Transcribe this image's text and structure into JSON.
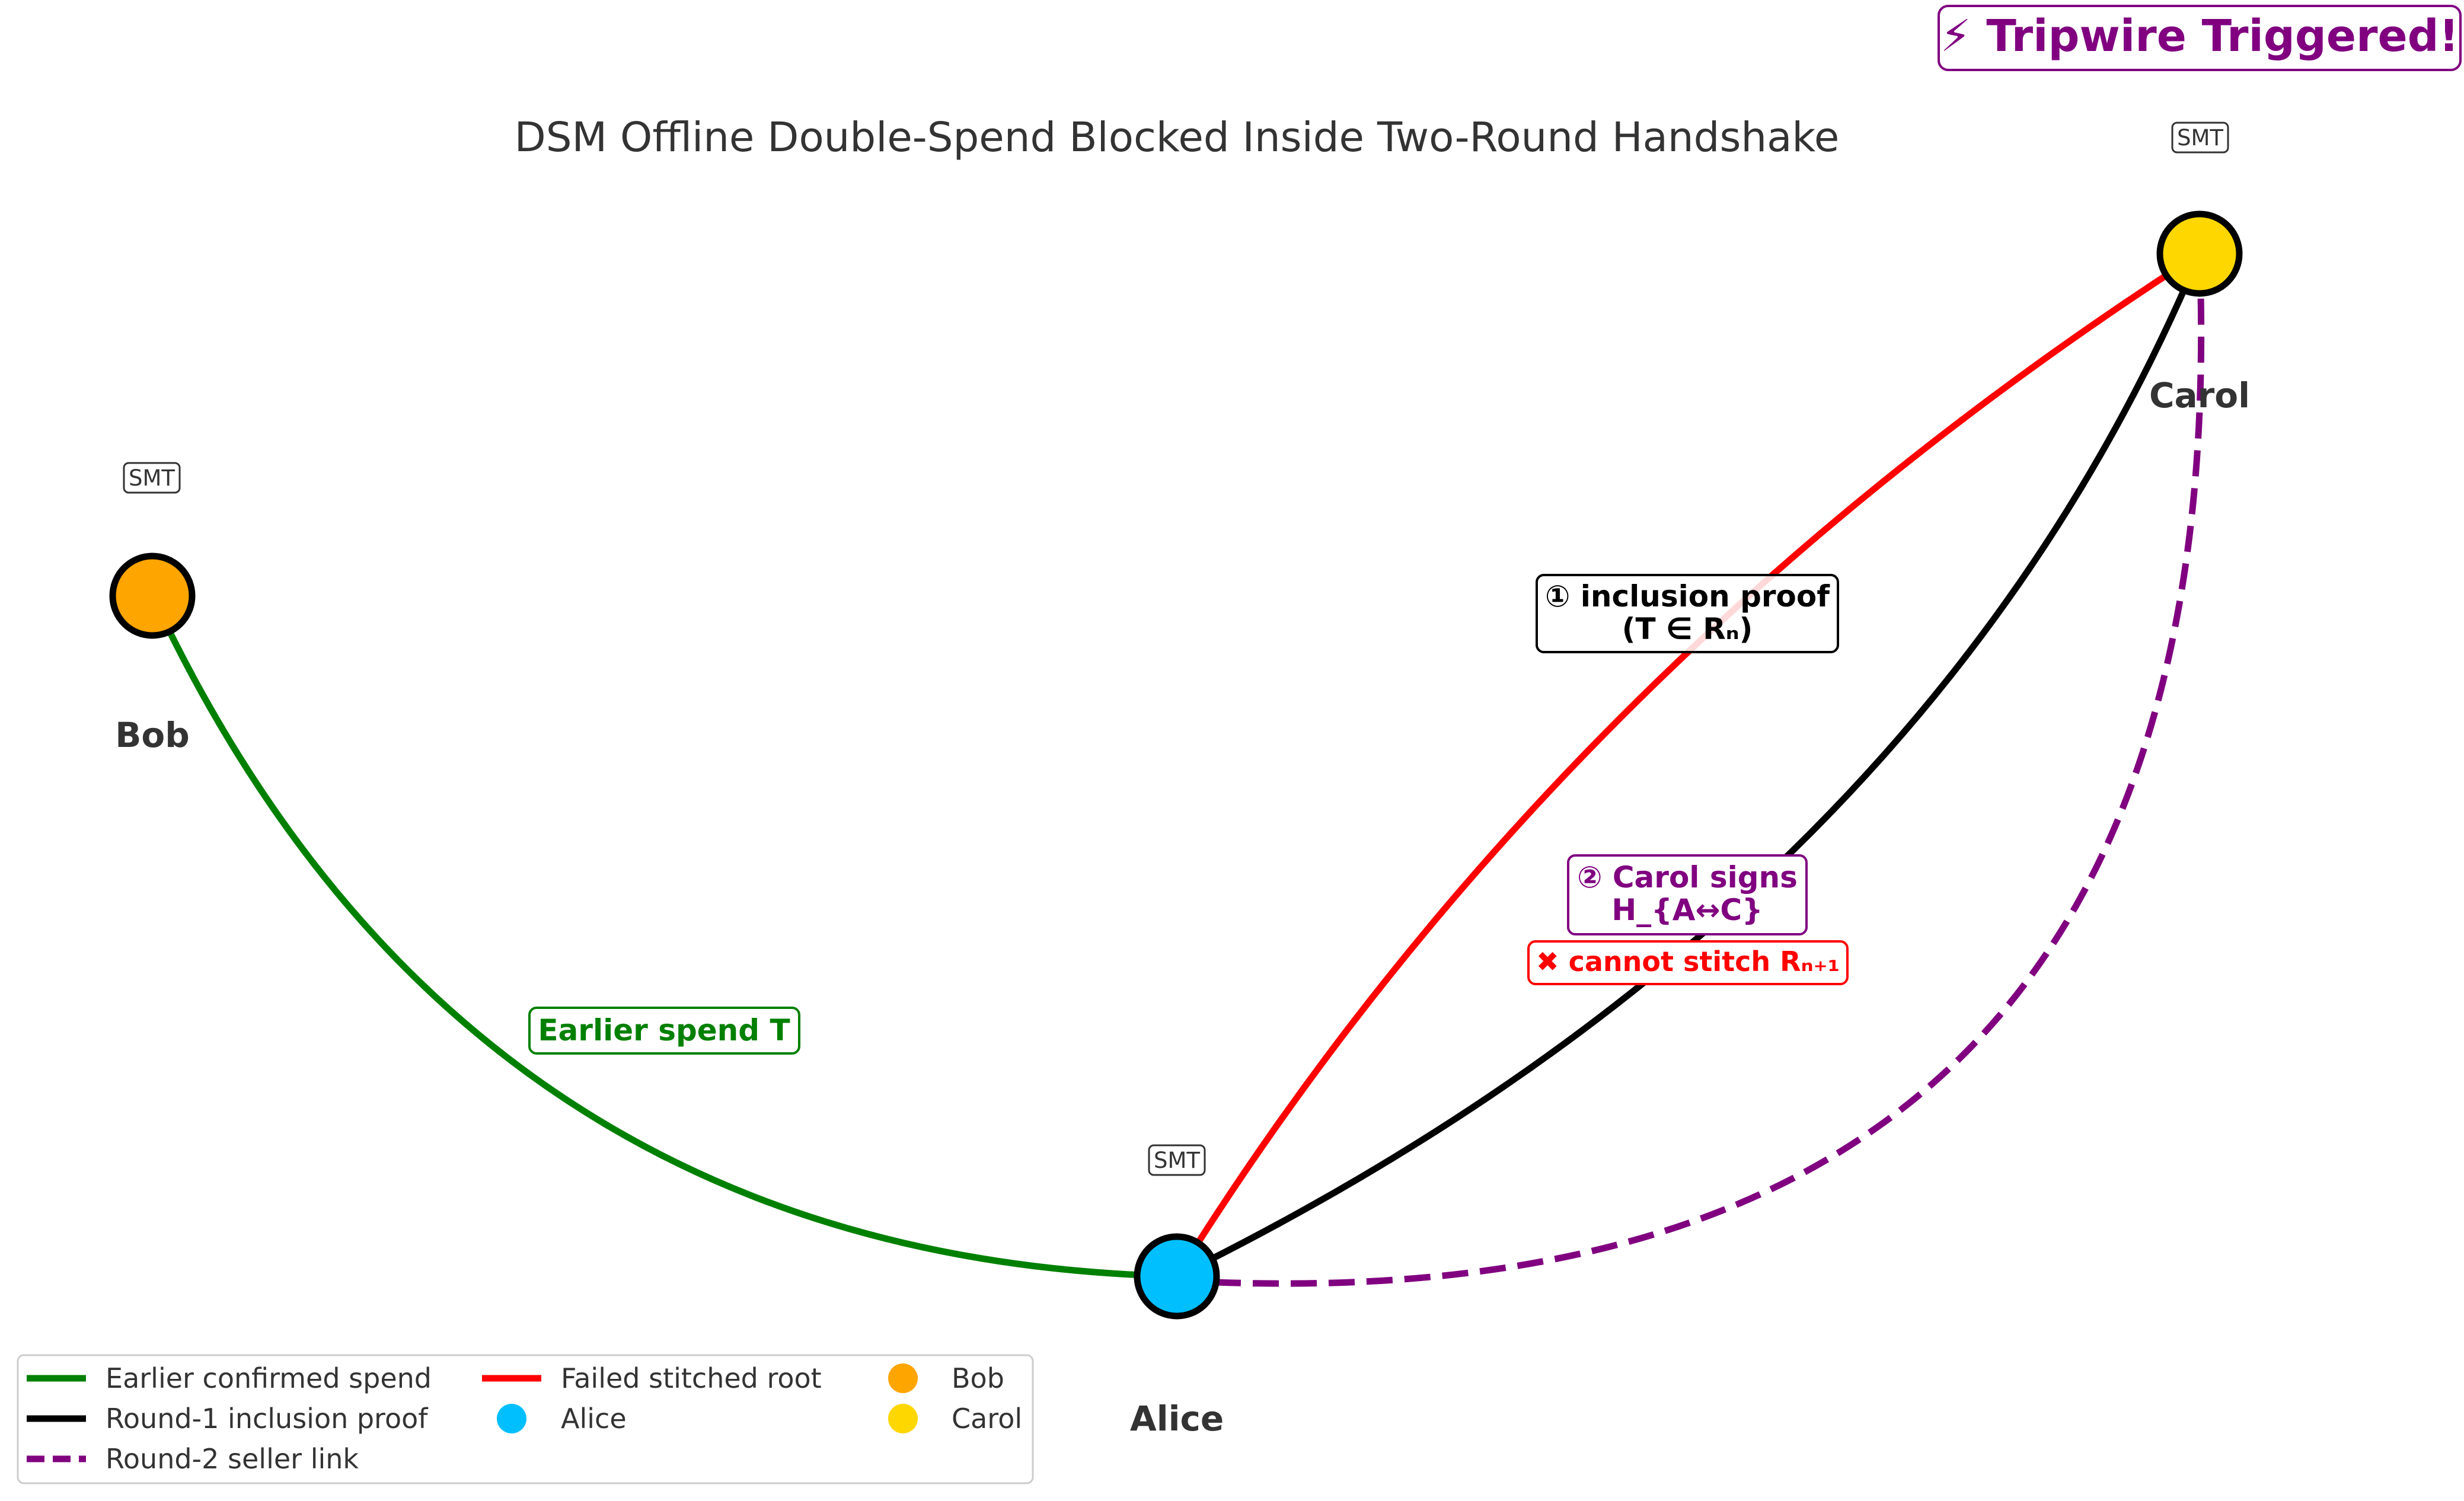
{
  "title": "DSM Offline Double-Spend Blocked Inside Two-Round Handshake",
  "badge": "⚡ Tripwire Triggered!",
  "nodes": [
    {
      "id": "bob",
      "label": "Bob",
      "color": "#FFA500",
      "tag": "SMT"
    },
    {
      "id": "alice",
      "label": "Alice",
      "color": "#00BFFF",
      "tag": "SMT"
    },
    {
      "id": "carol",
      "label": "Carol",
      "color": "#FFD700",
      "tag": "SMT"
    }
  ],
  "edges": [
    {
      "id": "earlier-spend",
      "from": "bob",
      "to": "alice",
      "color": "#008000",
      "style": "solid"
    },
    {
      "id": "failed-root",
      "from": "alice",
      "to": "carol",
      "color": "#FF0000",
      "style": "solid"
    },
    {
      "id": "inclusion-proof",
      "from": "alice",
      "to": "carol",
      "color": "#000000",
      "style": "solid"
    },
    {
      "id": "seller-link",
      "from": "alice",
      "to": "carol",
      "color": "#800080",
      "style": "dashed"
    }
  ],
  "annotations": {
    "earlier_spend": "Earlier spend T",
    "inclusion_line1": "① inclusion proof",
    "inclusion_line2": "(T ∈ Rₙ)",
    "carol_signs_line1": "② Carol signs",
    "carol_signs_line2": "H_{A↔C}",
    "cannot_stitch": "✖ cannot stitch Rₙ₊₁"
  },
  "legend": [
    {
      "label": "Earlier confirmed spend",
      "kind": "line",
      "color": "#008000"
    },
    {
      "label": "Round-1 inclusion proof",
      "kind": "line",
      "color": "#000000"
    },
    {
      "label": "Round-2 seller link",
      "kind": "dashed",
      "color": "#800080"
    },
    {
      "label": "Failed stitched root",
      "kind": "line",
      "color": "#FF0000"
    },
    {
      "label": "Alice",
      "kind": "dot",
      "color": "#00BFFF"
    },
    {
      "label": "Bob",
      "kind": "dot",
      "color": "#FFA500"
    },
    {
      "label": "Carol",
      "kind": "dot",
      "color": "#FFD700"
    }
  ]
}
